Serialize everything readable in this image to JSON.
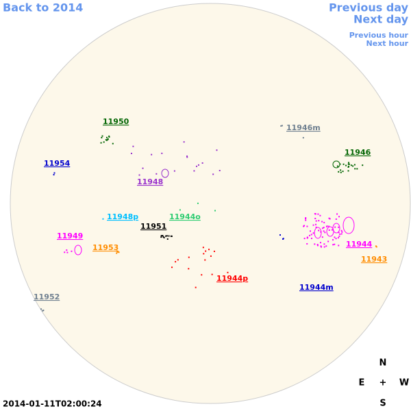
{
  "nav": {
    "back": "Back to 2014",
    "previous_day": "Previous day",
    "next_day": "Next day",
    "previous_hour": "Previous hour",
    "next_hour": "Next hour"
  },
  "regions": [
    {
      "label": "11950",
      "color": "#006400"
    },
    {
      "label": "11946m",
      "color": "#708090"
    },
    {
      "label": "11946",
      "color": "#006400"
    },
    {
      "label": "11954",
      "color": "#0000cd"
    },
    {
      "label": "11948",
      "color": "#9932cc"
    },
    {
      "label": "11948p",
      "color": "#00bfff"
    },
    {
      "label": "11951",
      "color": "#000000"
    },
    {
      "label": "11944o",
      "color": "#2ecc71"
    },
    {
      "label": "11949",
      "color": "#ff00ff"
    },
    {
      "label": "11953",
      "color": "#ff8c00"
    },
    {
      "label": "11944",
      "color": "#ff00ff"
    },
    {
      "label": "11943",
      "color": "#ff8c00"
    },
    {
      "label": "11944p",
      "color": "#ff0000"
    },
    {
      "label": "11944m",
      "color": "#0000cd"
    },
    {
      "label": "11952",
      "color": "#708090"
    }
  ],
  "timestamp": "2014-01-11T02:00:24",
  "compass": {
    "north": "N",
    "east": "E",
    "center": "+",
    "west": "W",
    "south": "S"
  }
}
